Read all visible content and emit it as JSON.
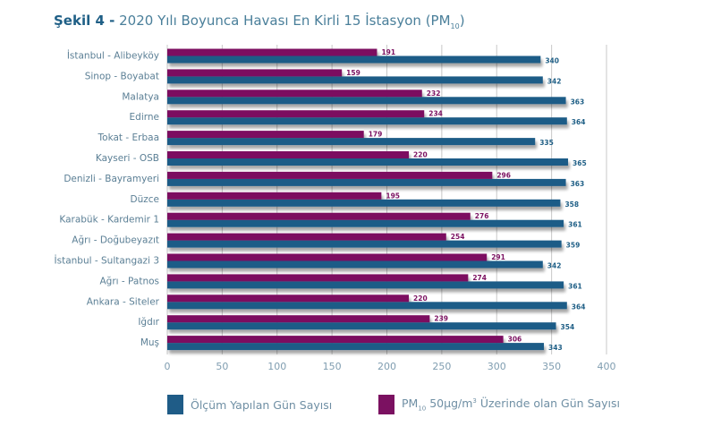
{
  "title": {
    "figure_label": "Şekil 4 -",
    "text": "2020 Yılı Boyunca Havası En Kirli 15 İstasyon (PM",
    "subscript": "10",
    "suffix": ")"
  },
  "colors": {
    "measured": "#1f5c87",
    "exceed": "#7b1161",
    "grid": "#c8c8c8"
  },
  "legend": {
    "measured_label": "Ölçüm Yapılan Gün Sayısı",
    "exceed_prefix": "PM",
    "exceed_sub": "10",
    "exceed_mid": " 50µg/m",
    "exceed_sup": "3",
    "exceed_suffix": " Üzerinde olan Gün Sayısı"
  },
  "chart_data": {
    "type": "bar",
    "orientation": "horizontal",
    "title": "Şekil 4 - 2020 Yılı Boyunca Havası En Kirli 15 İstasyon (PM10)",
    "xlabel": "",
    "ylabel": "",
    "xlim": [
      0,
      400
    ],
    "xticks": [
      0,
      50,
      100,
      150,
      200,
      250,
      300,
      350,
      400
    ],
    "grid": true,
    "legend_position": "bottom",
    "categories": [
      "İstanbul - Alibeyköy",
      "Sinop - Boyabat",
      "Malatya",
      "Edirne",
      "Tokat - Erbaa",
      "Kayseri - OSB",
      "Denizli - Bayramyeri",
      "Düzce",
      "Karabük - Kardemir 1",
      "Ağrı - Doğubeyazıt",
      "İstanbul - Sultangazi 3",
      "Ağrı - Patnos",
      "Ankara - Siteler",
      "Iğdır",
      "Muş"
    ],
    "series": [
      {
        "name": "PM10 50µg/m3 Üzerinde olan Gün Sayısı",
        "key": "exceed",
        "values": [
          191,
          159,
          232,
          234,
          179,
          220,
          296,
          195,
          276,
          254,
          291,
          274,
          220,
          239,
          306
        ]
      },
      {
        "name": "Ölçüm Yapılan Gün Sayısı",
        "key": "measured",
        "values": [
          340,
          342,
          363,
          364,
          335,
          365,
          363,
          358,
          361,
          359,
          342,
          361,
          364,
          354,
          343
        ]
      }
    ]
  }
}
